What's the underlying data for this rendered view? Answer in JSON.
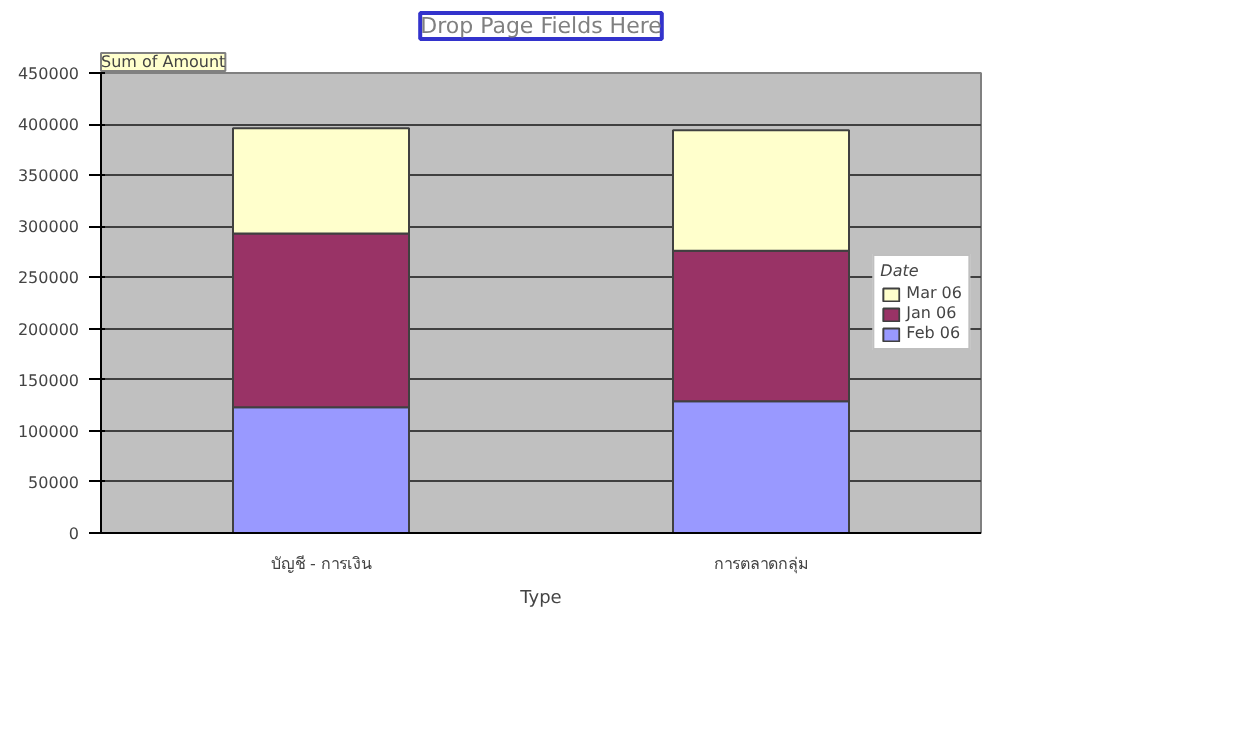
{
  "chart_data": {
    "type": "bar",
    "stacked": true,
    "annotations": [
      "Drop Page Fields Here"
    ],
    "ylabel": "Sum of Amount",
    "xlabel": "Type",
    "legend_title": "Date",
    "categories": [
      "บัญชี - การเงิน",
      "การตลาดกลุ่ม"
    ],
    "series": [
      {
        "name": "Feb 06",
        "color": "#9999ff",
        "values": [
          123000,
          129000
        ]
      },
      {
        "name": "Jan 06",
        "color": "#993366",
        "values": [
          170000,
          147000
        ]
      },
      {
        "name": "Mar 06",
        "color": "#ffffcc",
        "values": [
          103000,
          118000
        ]
      }
    ],
    "ylim": [
      0,
      450000
    ],
    "yticks": [
      0,
      50000,
      100000,
      150000,
      200000,
      250000,
      300000,
      350000,
      400000,
      450000
    ],
    "grid": "y",
    "legend": "right"
  }
}
